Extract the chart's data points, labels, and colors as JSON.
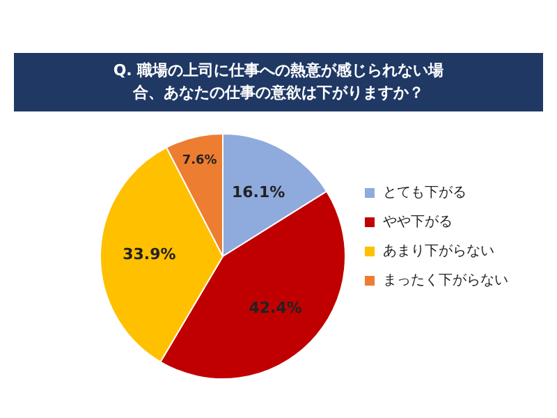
{
  "chart_data": {
    "type": "pie",
    "title": "Q. 職場の上司に仕事への熱意が感じられない場合、あなたの仕事の意欲は下がりますか？",
    "categories": [
      "とても下がる",
      "やや下がる",
      "あまり下がらない",
      "まったく下がらない"
    ],
    "values": [
      16.1,
      42.4,
      33.9,
      7.6
    ],
    "colors": [
      "#8faadc",
      "#c00000",
      "#ffc000",
      "#ed7d31"
    ],
    "value_labels": [
      "16.1%",
      "42.4%",
      "33.9%",
      "7.6%"
    ],
    "legend": "right"
  }
}
